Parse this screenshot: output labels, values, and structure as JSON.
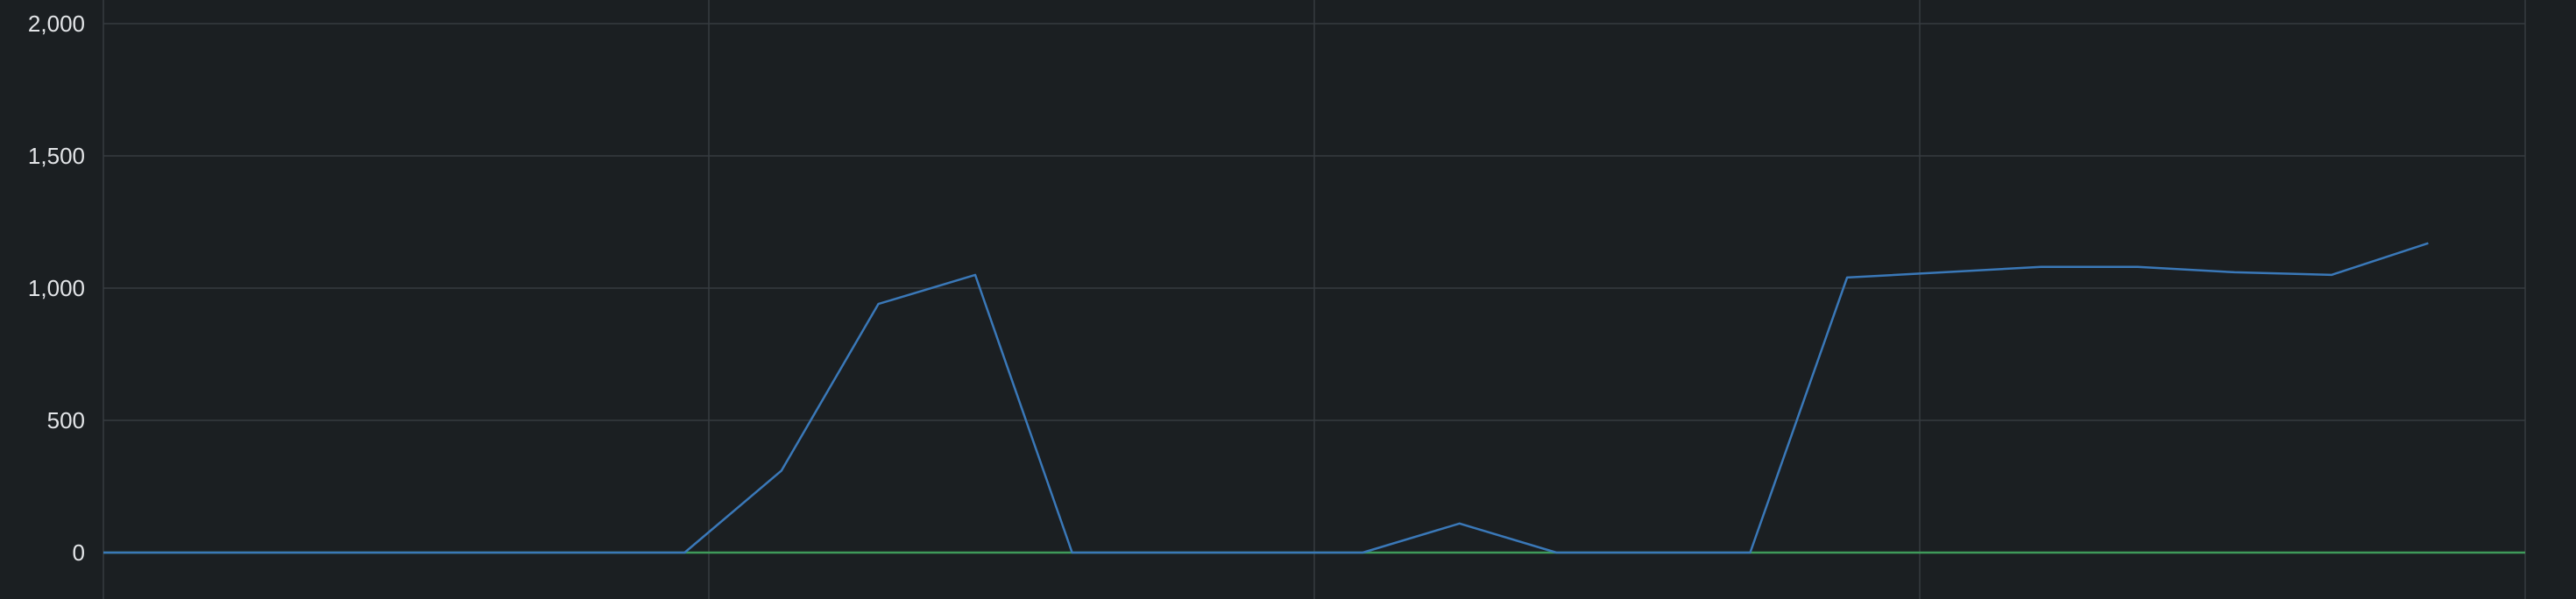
{
  "chart_data": {
    "type": "line",
    "x": [
      0,
      1,
      2,
      3,
      4,
      5,
      6,
      7,
      8,
      9,
      10,
      11,
      12,
      13,
      14,
      15,
      16,
      17,
      18,
      19,
      20,
      21,
      22,
      23,
      24,
      25
    ],
    "series": [
      {
        "color": "#3a78b8",
        "values": [
          0,
          0,
          0,
          0,
          0,
          0,
          0,
          310,
          940,
          1050,
          0,
          0,
          0,
          0,
          110,
          0,
          0,
          0,
          1040,
          1060,
          1080,
          1080,
          1060,
          1050,
          1170,
          null
        ]
      },
      {
        "color": "#3f9a5a",
        "values": [
          0,
          0,
          0,
          0,
          0,
          0,
          0,
          0,
          0,
          0,
          0,
          0,
          0,
          0,
          0,
          0,
          0,
          0,
          0,
          0,
          0,
          0,
          0,
          0,
          0,
          0
        ]
      }
    ],
    "y_ticks": [
      "0",
      "500",
      "1,000",
      "1,500",
      "2,000"
    ],
    "ylim": [
      0,
      2000
    ],
    "grid": true,
    "background_color": "#1b1f22",
    "grid_color": "#363b40",
    "label_color": "#e3e5e8"
  }
}
